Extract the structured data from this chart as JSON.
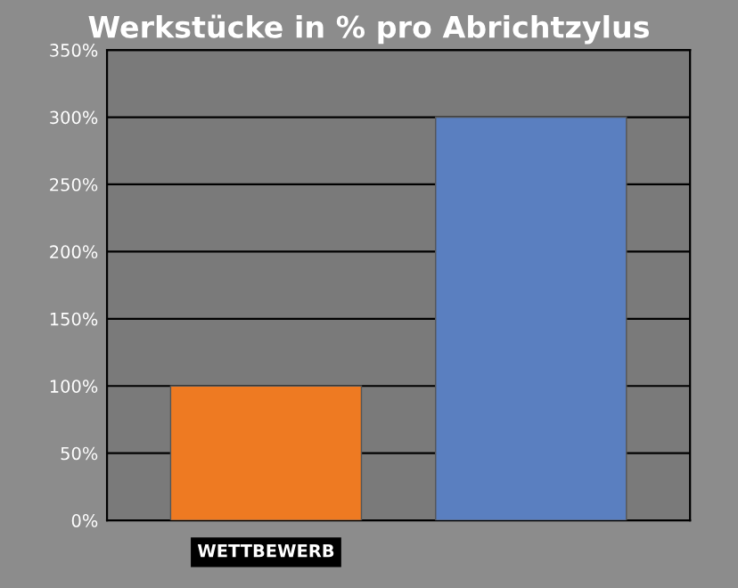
{
  "chart_data": {
    "type": "bar",
    "title": "Werkstücke in % pro Abrichtzylus",
    "categories": [
      "WETTBEWERB",
      null
    ],
    "values": [
      100,
      300
    ],
    "colors": [
      "#ee7a22",
      "#5a7fc0"
    ],
    "ylim": [
      0,
      350
    ],
    "yticks": [
      {
        "value": 0,
        "label": "0%"
      },
      {
        "value": 50,
        "label": "50%"
      },
      {
        "value": 100,
        "label": "100%"
      },
      {
        "value": 150,
        "label": "150%"
      },
      {
        "value": 200,
        "label": "200%"
      },
      {
        "value": 250,
        "label": "250%"
      },
      {
        "value": 300,
        "label": "300%"
      },
      {
        "value": 350,
        "label": "350%"
      }
    ],
    "grid": "y"
  }
}
